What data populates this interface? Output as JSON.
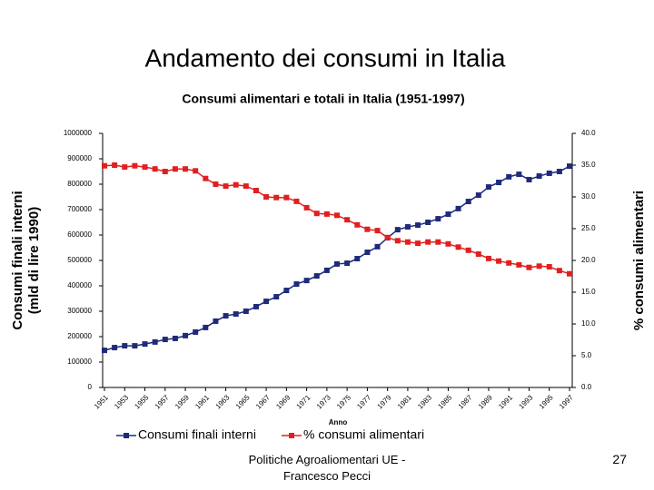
{
  "slide": {
    "title": "Andamento dei consumi in Italia",
    "footer": "Politiche Agroaliomentari UE - Francesco Pecci",
    "page": "27"
  },
  "chart_data": {
    "type": "line",
    "title": "Consumi alimentari e totali in Italia (1951-1997)",
    "xlabel": "Anno",
    "ylabel": [
      "Consumi finali interni",
      "(mld di lire 1990)"
    ],
    "y2label": "% consumi alimentari",
    "x": [
      1951,
      1952,
      1953,
      1954,
      1955,
      1956,
      1957,
      1958,
      1959,
      1960,
      1961,
      1962,
      1963,
      1964,
      1965,
      1966,
      1967,
      1968,
      1969,
      1970,
      1971,
      1972,
      1973,
      1974,
      1975,
      1976,
      1977,
      1978,
      1979,
      1980,
      1981,
      1982,
      1983,
      1984,
      1985,
      1986,
      1987,
      1988,
      1989,
      1990,
      1991,
      1992,
      1993,
      1994,
      1995,
      1996,
      1997
    ],
    "xlim": [
      1951,
      1997
    ],
    "xticks": [
      1951,
      1953,
      1955,
      1957,
      1959,
      1961,
      1963,
      1965,
      1967,
      1969,
      1971,
      1973,
      1975,
      1977,
      1979,
      1981,
      1983,
      1985,
      1987,
      1989,
      1991,
      1993,
      1995,
      1997
    ],
    "ylim": [
      0,
      1000000
    ],
    "yticks": [
      0,
      100000,
      200000,
      300000,
      400000,
      500000,
      600000,
      700000,
      800000,
      900000,
      1000000
    ],
    "y2lim": [
      0,
      40
    ],
    "y2ticks": [
      {
        "value": 0,
        "label": "0.0"
      },
      {
        "value": 5,
        "label": "5.0"
      },
      {
        "value": 10,
        "label": "10.0"
      },
      {
        "value": 15,
        "label": "15.0"
      },
      {
        "value": 20,
        "label": "20.0"
      },
      {
        "value": 25,
        "label": "25.0"
      },
      {
        "value": 30,
        "label": "30.0"
      },
      {
        "value": 35,
        "label": "35.0"
      },
      {
        "value": 40,
        "label": "40.0"
      }
    ],
    "legend": "bottom",
    "series": [
      {
        "name": "Consumi finali interni",
        "color": "#1f2a7a",
        "values": [
          146000,
          157000,
          164000,
          164000,
          171000,
          179000,
          189000,
          193000,
          204000,
          218000,
          236000,
          261000,
          282000,
          289000,
          300000,
          318000,
          339000,
          357000,
          382000,
          407000,
          421000,
          439000,
          461000,
          486000,
          489000,
          507000,
          532000,
          554000,
          589000,
          621000,
          632000,
          639000,
          650000,
          664000,
          682000,
          704000,
          732000,
          757000,
          789000,
          807000,
          829000,
          839000,
          818000,
          832000,
          843000,
          850000,
          871000
        ]
      },
      {
        "name": "% consumi alimentari",
        "color": "#e02020",
        "axis": "y2",
        "values": [
          34.9,
          35.0,
          34.7,
          34.9,
          34.7,
          34.4,
          34.0,
          34.4,
          34.4,
          34.1,
          32.9,
          32.0,
          31.7,
          31.9,
          31.7,
          31.0,
          30.0,
          29.9,
          29.9,
          29.3,
          28.3,
          27.4,
          27.3,
          27.1,
          26.4,
          25.6,
          24.9,
          24.7,
          23.6,
          23.1,
          22.9,
          22.7,
          22.9,
          22.9,
          22.6,
          22.1,
          21.6,
          21.0,
          20.3,
          19.9,
          19.6,
          19.3,
          18.9,
          19.1,
          19.0,
          18.4,
          17.9
        ]
      }
    ]
  }
}
